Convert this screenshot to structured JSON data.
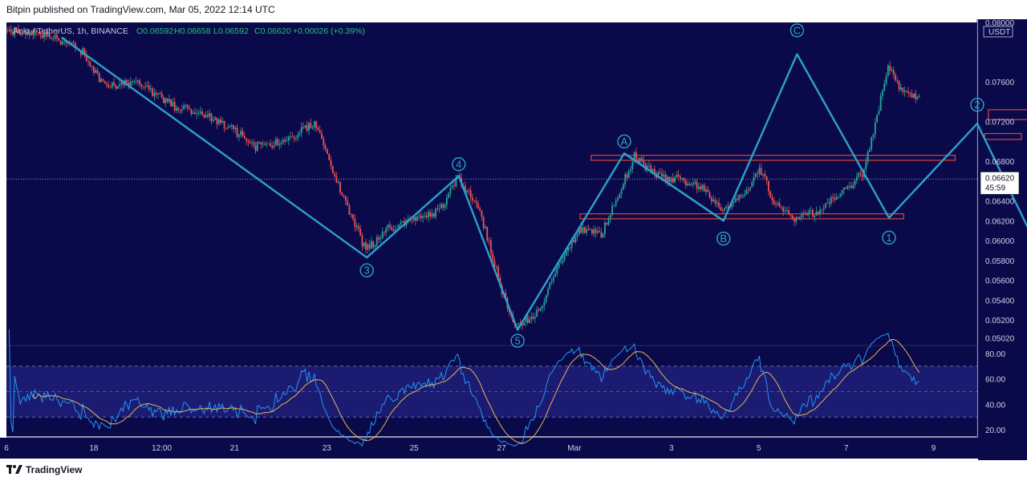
{
  "header": {
    "published": "Bitpin published on TradingView.com, Mar 05, 2022 12:14 UTC"
  },
  "footer": {
    "brand": "TradingView",
    "logo_icon": "tradingview-logo-icon"
  },
  "colors": {
    "background": "#0a0a4a",
    "up": "#26a69a",
    "down": "#ef5350",
    "wave": "#2ea0c8",
    "box": "#e0463a",
    "rsi": "#2196f3",
    "rsi_ma": "#e6b35a",
    "ohlc_text": "#26c281"
  },
  "chart_data": {
    "type": "candlestick",
    "symbol_line": {
      "symbol": "Ankr / TetherUS, 1h, BINANCE",
      "open": "O0.06592",
      "high": "H0.06658",
      "low": "L0.06592",
      "close": "C0.06620",
      "change": "+0.00026 (+0.39%)"
    },
    "currency": "USDT",
    "y_ticks": [
      "0.07600",
      "0.07200",
      "0.06800",
      "0.06400",
      "0.06200",
      "0.06000",
      "0.05800",
      "0.05600",
      "0.05400",
      "0.05200",
      "0.05020"
    ],
    "y_top_label": "0.08000",
    "last_price": "0.06620",
    "countdown": "45:59",
    "rsi_ticks": [
      "80.00",
      "60.00",
      "40.00",
      "20.00"
    ],
    "x_ticks": [
      "6",
      "18",
      "12:00",
      "21",
      "23",
      "25",
      "27",
      "Mar",
      "3",
      "5",
      "7",
      "9"
    ],
    "x_start": "2022-02-15T12:00",
    "x_end": "2022-03-09T12:00",
    "ylim": [
      0.0495,
      0.082
    ],
    "rsi_lim": [
      15,
      85
    ],
    "rsi_band": [
      30,
      70
    ],
    "price_path": [
      [
        "2022-02-15T12:00",
        0.0812
      ],
      [
        "2022-02-16T12:00",
        0.0808
      ],
      [
        "2022-02-17T06:00",
        0.079
      ],
      [
        "2022-02-17T18:00",
        0.0755
      ],
      [
        "2022-02-18T12:00",
        0.076
      ],
      [
        "2022-02-19T08:00",
        0.0735
      ],
      [
        "2022-02-20T00:00",
        0.0728
      ],
      [
        "2022-02-20T16:00",
        0.0712
      ],
      [
        "2022-02-21T04:00",
        0.0695
      ],
      [
        "2022-02-21T20:00",
        0.07
      ],
      [
        "2022-02-22T12:00",
        0.072
      ],
      [
        "2022-02-23T00:00",
        0.066
      ],
      [
        "2022-02-23T08:00",
        0.0625
      ],
      [
        "2022-02-23T16:00",
        0.059
      ],
      [
        "2022-02-24T04:00",
        0.0612
      ],
      [
        "2022-02-24T20:00",
        0.0622
      ],
      [
        "2022-02-25T08:00",
        0.063
      ],
      [
        "2022-02-25T18:00",
        0.0665
      ],
      [
        "2022-02-26T06:00",
        0.063
      ],
      [
        "2022-02-26T18:00",
        0.055
      ],
      [
        "2022-02-27T02:00",
        0.0512
      ],
      [
        "2022-02-27T14:00",
        0.053
      ],
      [
        "2022-02-28T00:00",
        0.057
      ],
      [
        "2022-02-28T12:00",
        0.0612
      ],
      [
        "2022-03-01T00:00",
        0.0605
      ],
      [
        "2022-03-01T08:00",
        0.064
      ],
      [
        "2022-03-01T18:00",
        0.0685
      ],
      [
        "2022-03-02T06:00",
        0.0665
      ],
      [
        "2022-03-02T18:00",
        0.0662
      ],
      [
        "2022-03-03T06:00",
        0.0655
      ],
      [
        "2022-03-03T18:00",
        0.0632
      ],
      [
        "2022-03-04T06:00",
        0.0645
      ],
      [
        "2022-03-04T14:00",
        0.0675
      ],
      [
        "2022-03-04T22:00",
        0.0638
      ],
      [
        "2022-03-05T10:00",
        0.0622
      ],
      [
        "2022-03-05T22:00",
        0.063
      ],
      [
        "2022-03-06T12:00",
        0.065
      ],
      [
        "2022-03-06T22:00",
        0.0668
      ],
      [
        "2022-03-07T04:00",
        0.071
      ],
      [
        "2022-03-07T12:00",
        0.0775
      ],
      [
        "2022-03-07T20:00",
        0.0748
      ],
      [
        "2022-03-08T08:00",
        0.0745
      ],
      [
        "2022-03-08T20:00",
        0.0752
      ],
      [
        "2022-03-09T04:00",
        0.0736
      ],
      [
        "2022-03-09T12:00",
        0.0728
      ]
    ],
    "waves": [
      {
        "name": "impulse",
        "points": [
          [
            "2022-02-16T18:00",
            0.0805
          ],
          [
            "2022-02-23T16:00",
            0.0583
          ],
          [
            "2022-02-25T18:00",
            0.0665
          ],
          [
            "2022-02-27T02:00",
            0.051
          ],
          [
            "2022-03-01T12:00",
            0.0688
          ]
        ]
      }
    ],
    "wave_labels": [
      {
        "text": "3",
        "x": "2022-02-23T16:00",
        "y": 0.057
      },
      {
        "text": "4",
        "x": "2022-02-25T18:00",
        "y": 0.0677
      },
      {
        "text": "5",
        "x": "2022-02-27T02:00",
        "y": 0.0499
      },
      {
        "text": "A",
        "x": "2022-03-01T12:00",
        "y": 0.07
      },
      {
        "text": "B",
        "x": "2022-03-03T18:00",
        "y": 0.0602
      },
      {
        "text": "C",
        "x": "2022-03-05T10:00",
        "y": 0.0812
      },
      {
        "text": "1",
        "x": "2022-03-07T12:00",
        "y": 0.0603
      },
      {
        "text": "2",
        "x": "2022-03-09T12:00",
        "y": 0.0737
      }
    ],
    "zones": [
      {
        "x0": "2022-03-09T18:00",
        "x1": "2022-03-10T22:00",
        "y0": 0.0722,
        "y1": 0.0732
      },
      {
        "x0": "2022-03-09T16:00",
        "x1": "2022-03-10T12:00",
        "y0": 0.0702,
        "y1": 0.0708
      },
      {
        "x0": "2022-02-28T18:00",
        "x1": "2022-03-09T00:00",
        "y0": 0.0681,
        "y1": 0.0686
      },
      {
        "x0": "2022-02-28T12:00",
        "x1": "2022-03-07T20:00",
        "y0": 0.0622,
        "y1": 0.0627
      }
    ]
  }
}
